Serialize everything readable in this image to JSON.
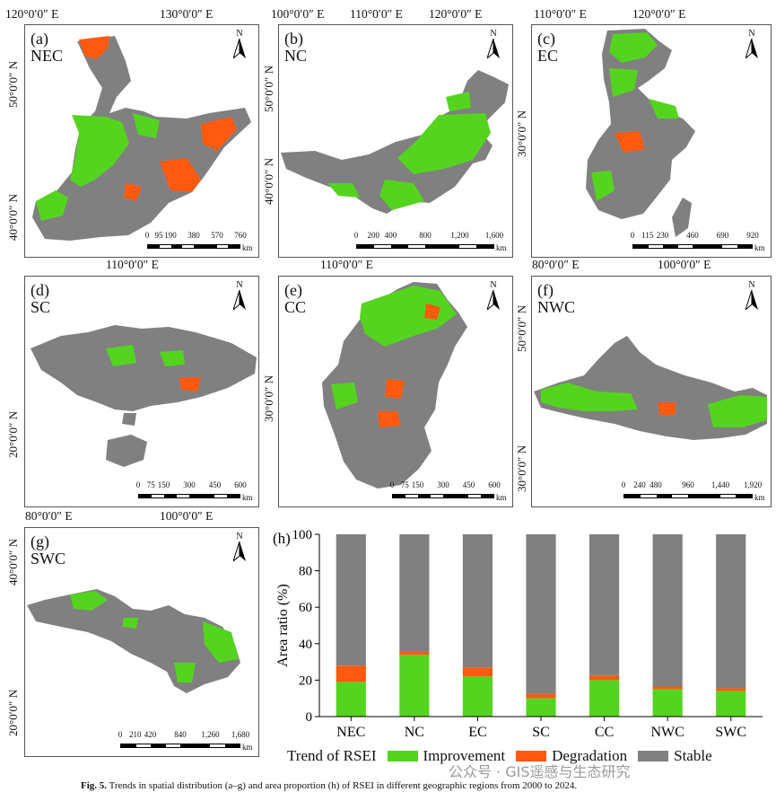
{
  "panels": [
    {
      "id": "a",
      "label": "(a)",
      "region": "NEC",
      "north": "N",
      "lon": [
        "120°0′0″ E",
        "130°0′0″ E"
      ],
      "lat": [
        "50°0′0″ N",
        "40°0′0″ N"
      ],
      "scale": [
        "0",
        "95",
        "190",
        "380",
        "570",
        "760"
      ],
      "unit": "km"
    },
    {
      "id": "b",
      "label": "(b)",
      "region": "NC",
      "north": "N",
      "lon": [
        "100°0′0″ E",
        "110°0′0″ E",
        "120°0′0″ E"
      ],
      "lat": [
        "50°0′0″ N",
        "40°0′0″ N"
      ],
      "scale": [
        "0",
        "200",
        "400",
        "800",
        "1,200",
        "1,600"
      ],
      "unit": "km"
    },
    {
      "id": "c",
      "label": "(c)",
      "region": "EC",
      "north": "N",
      "lon": [
        "110°0′0″ E",
        "120°0′0″ E"
      ],
      "lat": [
        "30°0′0″ N"
      ],
      "scale": [
        "0",
        "115",
        "230",
        "460",
        "690",
        "920"
      ],
      "unit": "km"
    },
    {
      "id": "d",
      "label": "(d)",
      "region": "SC",
      "north": "N",
      "lon": [
        "110°0′0″ E"
      ],
      "lat": [
        "20°0′0″ N"
      ],
      "scale": [
        "0",
        "75",
        "150",
        "300",
        "450",
        "600"
      ],
      "unit": "km"
    },
    {
      "id": "e",
      "label": "(e)",
      "region": "CC",
      "north": "N",
      "lon": [
        "110°0′0″ E"
      ],
      "lat": [
        "30°0′0″ N"
      ],
      "scale": [
        "0",
        "75",
        "150",
        "300",
        "450",
        "600"
      ],
      "unit": "km"
    },
    {
      "id": "f",
      "label": "(f)",
      "region": "NWC",
      "north": "N",
      "lon": [
        "80°0′0″ E",
        "100°0′0″ E"
      ],
      "lat": [
        "50°0′0″ N",
        "30°0′0″ N"
      ],
      "scale": [
        "0",
        "240",
        "480",
        "960",
        "1,440",
        "1,920"
      ],
      "unit": "km"
    },
    {
      "id": "g",
      "label": "(g)",
      "region": "SWC",
      "north": "N",
      "lon": [
        "80°0′0″ E",
        "100°0′0″ E"
      ],
      "lat": [
        "40°0′0″ N",
        "20°0′0″ N"
      ],
      "scale": [
        "0",
        "210",
        "420",
        "840",
        "1,260",
        "1,680"
      ],
      "unit": "km"
    }
  ],
  "chart_data": {
    "type": "bar",
    "stacked": true,
    "panel_label": "(h)",
    "categories": [
      "NEC",
      "NC",
      "EC",
      "SC",
      "CC",
      "NWC",
      "SWC"
    ],
    "series": [
      {
        "name": "Improvement",
        "color": "#54d41f",
        "values": [
          19,
          34,
          22,
          10,
          20,
          15,
          14
        ]
      },
      {
        "name": "Degradation",
        "color": "#ff5a10",
        "values": [
          9,
          1.5,
          5,
          2.5,
          2.5,
          1.5,
          1.5
        ]
      },
      {
        "name": "Stable",
        "color": "#808080",
        "values": [
          72,
          64.5,
          73,
          87.5,
          77.5,
          83.5,
          84.5
        ]
      }
    ],
    "ylabel": "Area ratio (%)",
    "ylim": [
      0,
      100
    ],
    "yticks": [
      0,
      20,
      40,
      60,
      80,
      100
    ]
  },
  "legend": {
    "title": "Trend of RSEI",
    "items": [
      "Improvement",
      "Degradation",
      "Stable"
    ]
  },
  "caption": {
    "bold": "Fig. 5.",
    "text": "Trends in spatial distribution (a–g) and area proportion (h) of RSEI in different geographic regions from 2000 to 2024."
  },
  "watermark": "公众号 · GIS遥感与生态研究",
  "colors": {
    "improvement": "#54d41f",
    "degradation": "#ff5a10",
    "stable": "#808080"
  }
}
